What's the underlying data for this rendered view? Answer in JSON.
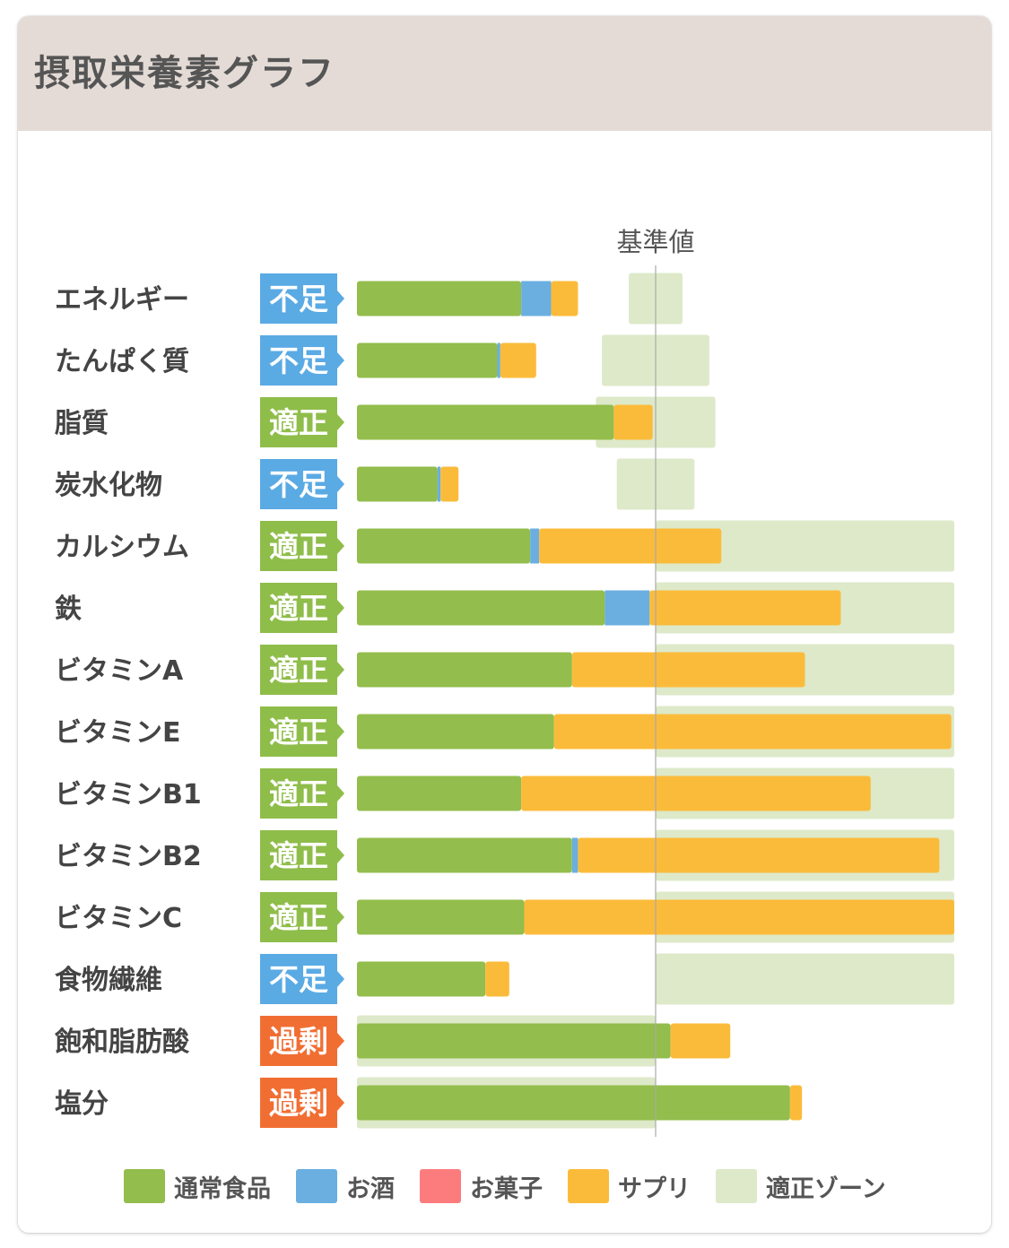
{
  "header": {
    "title": "摂取栄養素グラフ"
  },
  "colors": {
    "normal": "#93bd4c",
    "alcohol": "#6aafe0",
    "snack": "#fc7c7e",
    "supplement": "#fbbb3a",
    "zone": "#dde9c9",
    "status_insufficient": "#5aaae4",
    "status_adequate": "#8fbd4a",
    "status_excess": "#f16e33",
    "label_text": "#444444",
    "reference_line": "#aaaaaa"
  },
  "chart_data": {
    "type": "bar",
    "orientation": "horizontal",
    "stacked": true,
    "reference_label": "基準値",
    "reference_value": 100,
    "xlim": [
      0,
      200
    ],
    "unit": "% of reference",
    "categories": [
      "エネルギー",
      "たんぱく質",
      "脂質",
      "炭水化物",
      "カルシウム",
      "鉄",
      "ビタミンA",
      "ビタミンE",
      "ビタミンB1",
      "ビタミンB2",
      "ビタミンC",
      "食物繊維",
      "飽和脂肪酸",
      "塩分"
    ],
    "status_labels": [
      "不足",
      "不足",
      "適正",
      "不足",
      "適正",
      "適正",
      "適正",
      "適正",
      "適正",
      "適正",
      "適正",
      "不足",
      "過剰",
      "過剰"
    ],
    "status_types": [
      "insufficient",
      "insufficient",
      "adequate",
      "insufficient",
      "adequate",
      "adequate",
      "adequate",
      "adequate",
      "adequate",
      "adequate",
      "adequate",
      "insufficient",
      "excess",
      "excess"
    ],
    "series": [
      {
        "name": "通常食品",
        "color_key": "normal",
        "values": [
          55,
          47,
          86,
          27,
          58,
          83,
          72,
          66,
          55,
          72,
          56,
          43,
          105,
          145
        ]
      },
      {
        "name": "お酒",
        "color_key": "alcohol",
        "values": [
          10,
          1,
          0,
          1,
          3,
          15,
          0,
          0,
          0,
          2,
          0,
          0,
          0,
          0
        ]
      },
      {
        "name": "お菓子",
        "color_key": "snack",
        "values": [
          0,
          0,
          0,
          0,
          0,
          0,
          0,
          0,
          0,
          0,
          0,
          0,
          0,
          0
        ]
      },
      {
        "name": "サプリ",
        "color_key": "supplement",
        "values": [
          9,
          12,
          13,
          6,
          61,
          64,
          78,
          133,
          117,
          121,
          144,
          8,
          20,
          4
        ]
      }
    ],
    "adequate_zone": [
      [
        91,
        109
      ],
      [
        82,
        118
      ],
      [
        80,
        120
      ],
      [
        87,
        113
      ],
      [
        100,
        200
      ],
      [
        100,
        200
      ],
      [
        100,
        200
      ],
      [
        100,
        200
      ],
      [
        100,
        200
      ],
      [
        100,
        200
      ],
      [
        100,
        200
      ],
      [
        100,
        200
      ],
      [
        0,
        100
      ],
      [
        0,
        100
      ]
    ],
    "legend": {
      "placement": "bottom",
      "items": [
        {
          "label": "通常食品",
          "color_key": "normal"
        },
        {
          "label": "お酒",
          "color_key": "alcohol"
        },
        {
          "label": "お菓子",
          "color_key": "snack"
        },
        {
          "label": "サプリ",
          "color_key": "supplement"
        },
        {
          "label": "適正ゾーン",
          "color_key": "zone"
        }
      ]
    }
  }
}
